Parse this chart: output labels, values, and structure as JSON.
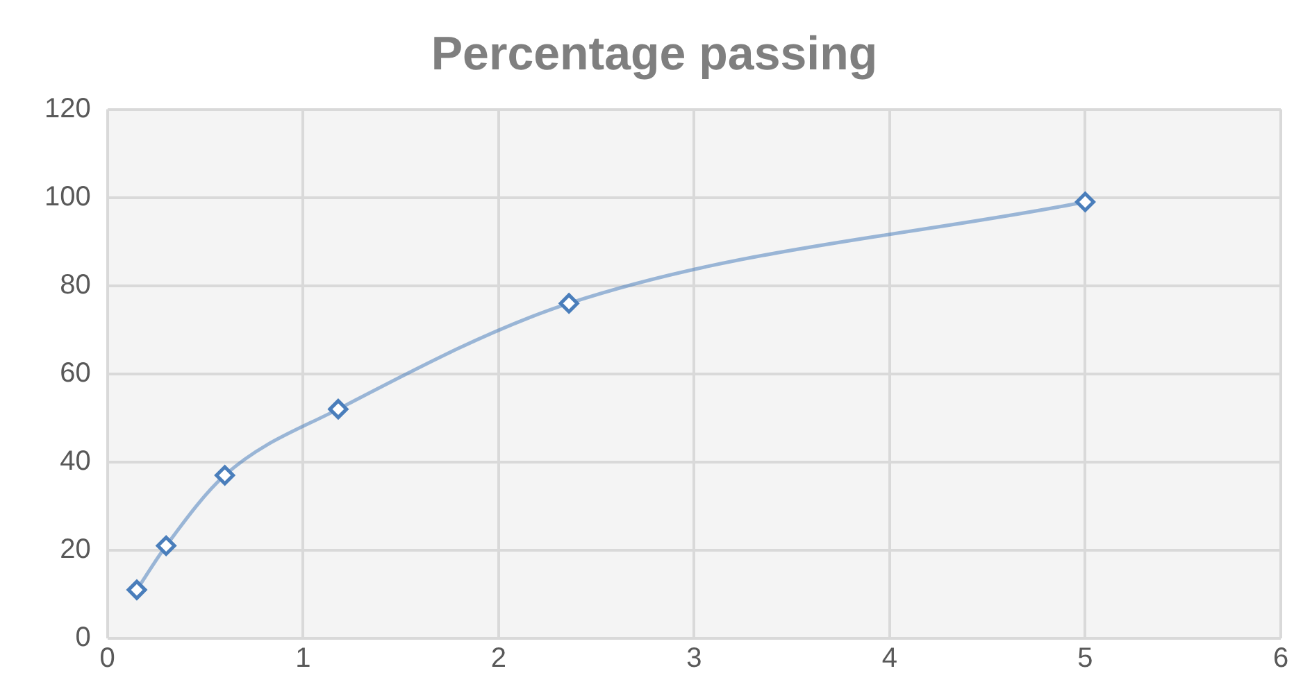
{
  "chart_data": {
    "type": "scatter",
    "title": "Percentage passing",
    "x": [
      0.15,
      0.3,
      0.6,
      1.18,
      2.36,
      5
    ],
    "series": [
      {
        "type": "line",
        "color": "#4a7ebb",
        "values": [
          11,
          21,
          37,
          52,
          76,
          99
        ]
      }
    ],
    "xlim": [
      0,
      6
    ],
    "xticks": [
      0,
      1,
      2,
      3,
      4,
      5,
      6
    ],
    "ylim": [
      0,
      120
    ],
    "yticks": [
      0,
      20,
      40,
      60,
      80,
      100,
      120
    ],
    "grid": true,
    "legend": false,
    "marker": "diamond",
    "line_style": "solid"
  }
}
